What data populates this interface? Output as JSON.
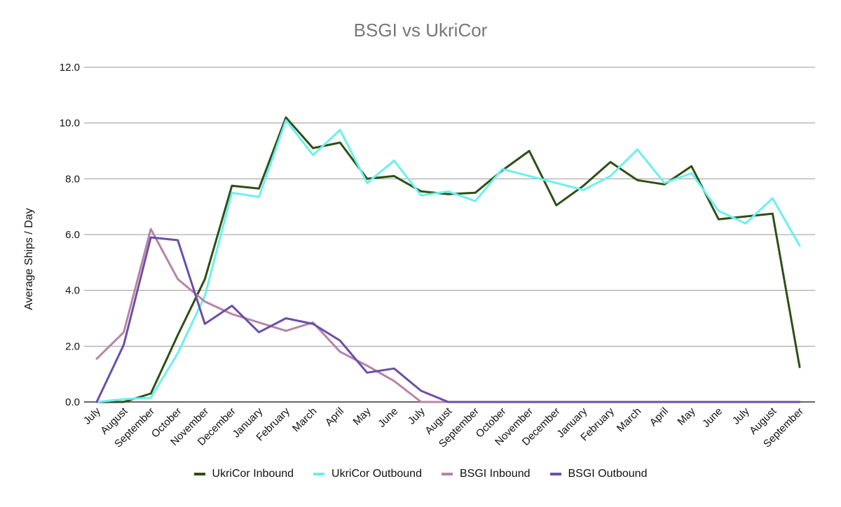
{
  "chart_data": {
    "type": "line",
    "title": "BSGI vs UkriCor",
    "ylabel": "Average Ships / Day",
    "xlabel": "",
    "ylim": [
      0,
      12
    ],
    "yticks": [
      "0.0",
      "2.0",
      "4.0",
      "6.0",
      "8.0",
      "10.0",
      "12.0"
    ],
    "grid": true,
    "legend_position": "bottom",
    "categories": [
      "July",
      "August",
      "September",
      "October",
      "November",
      "December",
      "January",
      "February",
      "March",
      "April",
      "May",
      "June",
      "July",
      "August",
      "September",
      "October",
      "November",
      "December",
      "January",
      "February",
      "March",
      "April",
      "May",
      "June",
      "July",
      "August",
      "September"
    ],
    "series": [
      {
        "name": "UkriCor Inbound",
        "color": "#2d5016",
        "values": [
          0.0,
          0.0,
          0.3,
          2.4,
          4.4,
          7.75,
          7.65,
          10.2,
          9.1,
          9.3,
          8.0,
          8.1,
          7.55,
          7.45,
          7.5,
          8.3,
          9.0,
          7.05,
          7.75,
          8.6,
          7.95,
          7.8,
          8.45,
          6.55,
          6.65,
          6.75,
          1.25
        ]
      },
      {
        "name": "UkriCor Outbound",
        "color": "#6af0f0",
        "values": [
          0.0,
          0.1,
          0.15,
          1.75,
          3.8,
          7.5,
          7.35,
          10.1,
          8.85,
          9.75,
          7.85,
          8.65,
          7.4,
          7.55,
          7.2,
          8.35,
          8.1,
          7.85,
          7.6,
          8.1,
          9.05,
          7.85,
          8.2,
          6.85,
          6.4,
          7.3,
          5.6
        ]
      },
      {
        "name": "BSGI Inbound",
        "color": "#b784a7",
        "values": [
          1.55,
          2.5,
          6.2,
          4.4,
          3.6,
          3.15,
          2.85,
          2.55,
          2.85,
          1.8,
          1.3,
          0.75,
          0.0,
          0.0,
          0.0,
          0.0,
          0.0,
          0.0,
          0.0,
          0.0,
          0.0,
          0.0,
          0.0,
          0.0,
          0.0,
          0.0,
          0.0
        ]
      },
      {
        "name": "BSGI Outbound",
        "color": "#6a4fa8",
        "values": [
          0.0,
          2.05,
          5.9,
          5.8,
          2.8,
          3.45,
          2.5,
          3.0,
          2.8,
          2.2,
          1.05,
          1.2,
          0.4,
          0.0,
          0.0,
          0.0,
          0.0,
          0.0,
          0.0,
          0.0,
          0.0,
          0.0,
          0.0,
          0.0,
          0.0,
          0.0,
          0.0
        ]
      }
    ]
  }
}
